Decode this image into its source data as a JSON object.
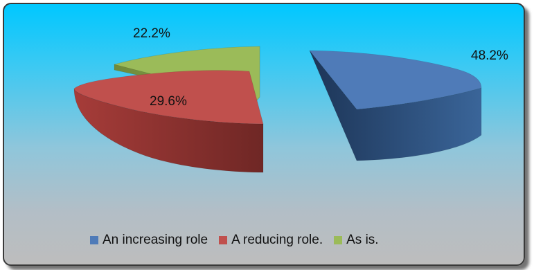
{
  "chart_data": {
    "type": "pie",
    "style": "3d-exploded",
    "title": "",
    "legend_position": "bottom",
    "slices": [
      {
        "label": "An increasing role",
        "value": 48.2,
        "value_label": "48.2%",
        "color": "#4f7bb8",
        "side_color": "#2b4a78"
      },
      {
        "label": "A reducing role.",
        "value": 29.6,
        "value_label": "29.6%",
        "color": "#c0504d",
        "side_color": "#7d2e2c"
      },
      {
        "label": "As is.",
        "value": 22.2,
        "value_label": "22.2%",
        "color": "#9bbb59",
        "side_color": "#5b7131"
      }
    ]
  }
}
